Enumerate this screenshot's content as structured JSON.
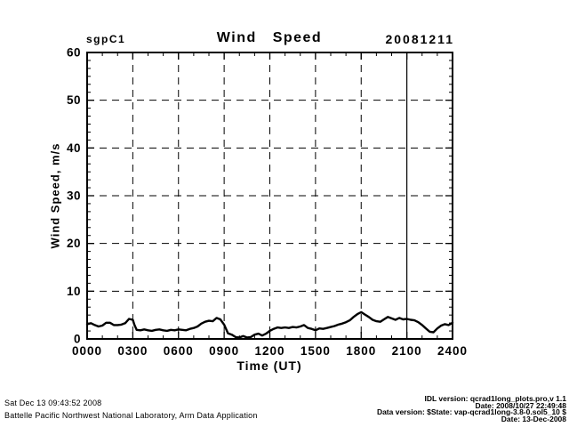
{
  "header": {
    "facility": "sgpC1",
    "title": "Wind Speed",
    "date": "20081211"
  },
  "chart_data": {
    "type": "line",
    "title": "Wind Speed",
    "xlabel": "Time (UT)",
    "ylabel": "Wind Speed, m/s",
    "xlim": [
      0,
      24
    ],
    "ylim": [
      0,
      60
    ],
    "x_ticks": [
      0,
      3,
      6,
      9,
      12,
      15,
      18,
      21,
      24
    ],
    "x_tick_labels": [
      "0000",
      "0300",
      "0600",
      "0900",
      "1200",
      "1500",
      "1800",
      "2100",
      "2400"
    ],
    "y_ticks": [
      0,
      10,
      20,
      30,
      40,
      50,
      60
    ],
    "y_tick_labels": [
      "0",
      "10",
      "20",
      "30",
      "40",
      "50",
      "60"
    ],
    "x_minor_step_hours": 1,
    "y_minor_divisions": 6,
    "grid_style": "dashed",
    "solid_vline_hour": 21,
    "line_color": "#000000",
    "background_color": "#ffffff",
    "legend": "none",
    "series": [
      {
        "name": "wind_speed_mps",
        "x": [
          0.0,
          0.25,
          0.5,
          0.75,
          1.0,
          1.25,
          1.5,
          1.75,
          2.0,
          2.25,
          2.5,
          2.75,
          3.0,
          3.1,
          3.25,
          3.5,
          3.75,
          4.0,
          4.25,
          4.5,
          4.75,
          5.0,
          5.25,
          5.5,
          5.75,
          6.0,
          6.25,
          6.5,
          6.75,
          7.0,
          7.25,
          7.5,
          7.75,
          8.0,
          8.25,
          8.5,
          8.75,
          9.0,
          9.25,
          9.5,
          9.75,
          10.0,
          10.25,
          10.5,
          10.75,
          11.0,
          11.25,
          11.5,
          11.75,
          12.0,
          12.25,
          12.5,
          12.75,
          13.0,
          13.25,
          13.5,
          13.75,
          14.0,
          14.25,
          14.5,
          14.75,
          15.0,
          15.25,
          15.5,
          15.75,
          16.0,
          16.25,
          16.5,
          16.75,
          17.0,
          17.25,
          17.5,
          17.75,
          18.0,
          18.25,
          18.5,
          18.75,
          19.0,
          19.25,
          19.5,
          19.75,
          20.0,
          20.25,
          20.5,
          20.75,
          21.0,
          21.25,
          21.5,
          21.75,
          22.0,
          22.25,
          22.5,
          22.75,
          23.0,
          23.25,
          23.5,
          23.75,
          24.0
        ],
        "y": [
          3.1,
          3.3,
          2.9,
          2.6,
          2.8,
          3.4,
          3.4,
          2.9,
          2.9,
          3.0,
          3.3,
          4.2,
          4.0,
          3.0,
          1.9,
          1.8,
          2.0,
          1.8,
          1.7,
          1.9,
          2.0,
          1.8,
          1.7,
          1.9,
          1.8,
          2.0,
          1.9,
          1.8,
          2.1,
          2.3,
          2.6,
          3.2,
          3.6,
          3.8,
          3.7,
          4.4,
          4.1,
          3.0,
          1.2,
          0.9,
          0.4,
          0.3,
          0.6,
          0.3,
          0.4,
          0.9,
          1.1,
          0.7,
          1.1,
          1.7,
          2.1,
          2.4,
          2.3,
          2.4,
          2.3,
          2.5,
          2.4,
          2.6,
          2.9,
          2.3,
          2.1,
          1.8,
          2.2,
          2.1,
          2.3,
          2.5,
          2.7,
          3.0,
          3.2,
          3.5,
          3.9,
          4.6,
          5.2,
          5.6,
          5.1,
          4.6,
          4.0,
          3.7,
          3.6,
          4.1,
          4.6,
          4.3,
          4.0,
          4.4,
          4.1,
          4.2,
          4.0,
          3.9,
          3.5,
          2.9,
          2.2,
          1.5,
          1.4,
          2.2,
          2.8,
          3.1,
          2.9,
          3.4
        ]
      }
    ]
  },
  "footer_left": {
    "line1": "Sat Dec 13 09:43:52 2008",
    "line2": "Battelle Pacific Northwest National Laboratory, Arm Data Application"
  },
  "footer_right": {
    "line1": "IDL version: qcrad1long_plots.pro,v 1.1",
    "line2": "Date: 2008/10/27 22:49:48",
    "line3": "Data version: $State: vap-qcrad1long-3.8-0.sol5_10 $",
    "line4": "Date: 13-Dec-2008"
  },
  "colors": {
    "foreground": "#000000",
    "background": "#ffffff"
  }
}
